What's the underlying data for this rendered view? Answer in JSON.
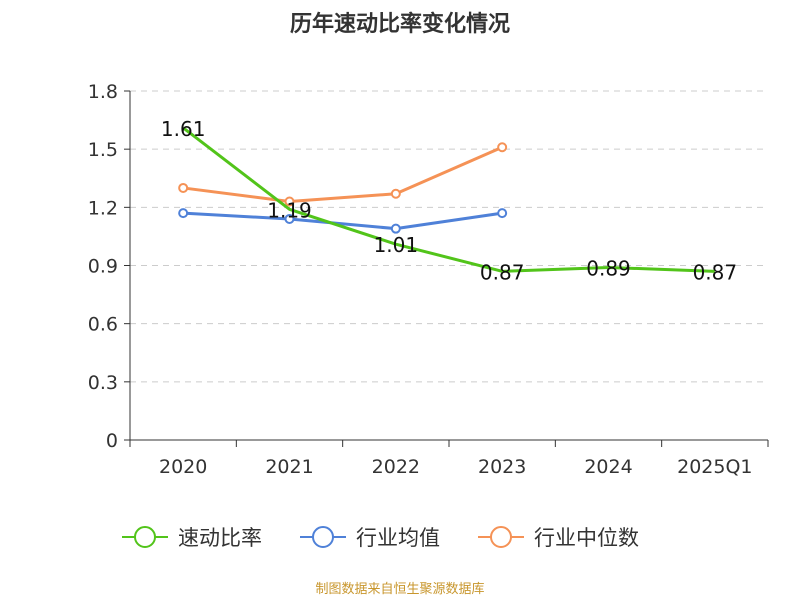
{
  "title": "历年速动比率变化情况",
  "footer": "制图数据来自恒生聚源数据库",
  "chart_data": {
    "type": "line",
    "title": "历年速动比率变化情况",
    "categories": [
      "2020",
      "2021",
      "2022",
      "2023",
      "2024",
      "2025Q1"
    ],
    "ylim": [
      0,
      1.8
    ],
    "yticks": [
      "0",
      "0.3",
      "0.6",
      "0.9",
      "1.2",
      "1.5",
      "1.8"
    ],
    "grid": true,
    "legend_position": "bottom",
    "series": [
      {
        "name": "速动比率",
        "color": "#52c41a",
        "values": [
          1.61,
          1.19,
          1.01,
          0.87,
          0.89,
          0.87
        ],
        "labels": [
          "1.61",
          "1.19",
          "1.01",
          "0.87",
          "0.89",
          "0.87"
        ],
        "show_markers": false
      },
      {
        "name": "行业均值",
        "color": "#4f81d8",
        "values": [
          1.17,
          1.14,
          1.09,
          1.17,
          null,
          null
        ],
        "show_markers": true
      },
      {
        "name": "行业中位数",
        "color": "#f59256",
        "values": [
          1.3,
          1.23,
          1.27,
          1.51,
          null,
          null
        ],
        "show_markers": true
      }
    ]
  }
}
